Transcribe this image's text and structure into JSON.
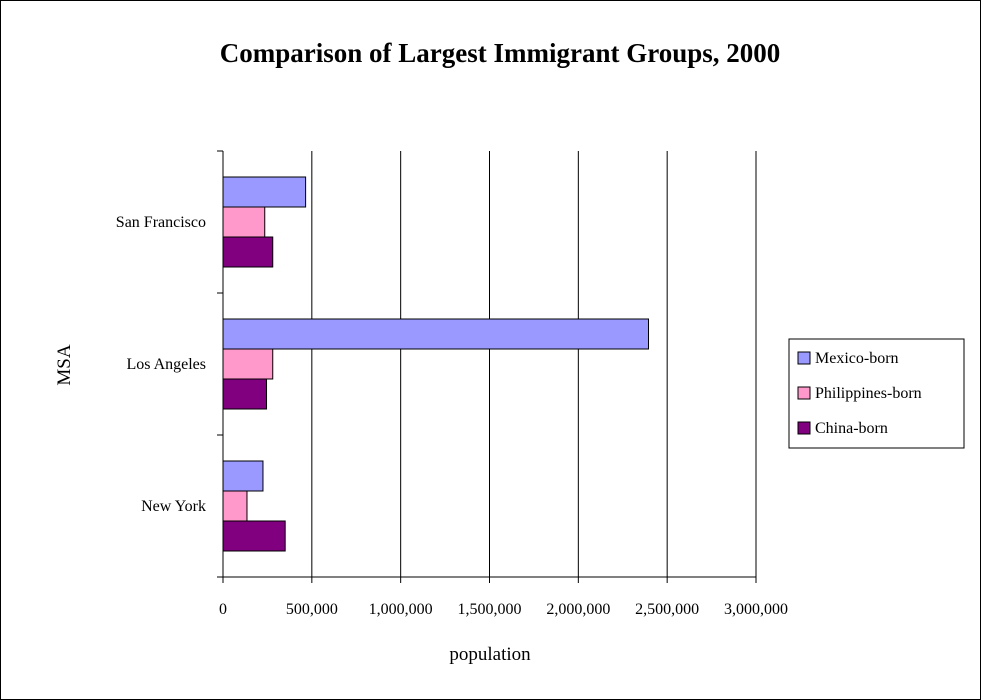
{
  "chart_data": {
    "type": "bar",
    "orientation": "horizontal",
    "title": "Comparison of Largest Immigrant Groups, 2000",
    "xlabel": "population",
    "ylabel": "MSA",
    "categories": [
      "San Francisco",
      "Los Angeles",
      "New York"
    ],
    "series": [
      {
        "name": "Mexico-born",
        "color": "#9999ff",
        "values": [
          465000,
          2395000,
          225000
        ]
      },
      {
        "name": "Philippines-born",
        "color": "#ff99cc",
        "values": [
          235000,
          280000,
          135000
        ]
      },
      {
        "name": "China-born",
        "color": "#800080",
        "values": [
          280000,
          245000,
          350000
        ]
      }
    ],
    "xlim": [
      0,
      3000000
    ],
    "xticks": [
      0,
      500000,
      1000000,
      1500000,
      2000000,
      2500000,
      3000000
    ],
    "xtick_labels": [
      "0",
      "500,000",
      "1,000,000",
      "1,500,000",
      "2,000,000",
      "2,500,000",
      "3,000,000"
    ],
    "grid": "vertical",
    "legend_position": "right"
  }
}
